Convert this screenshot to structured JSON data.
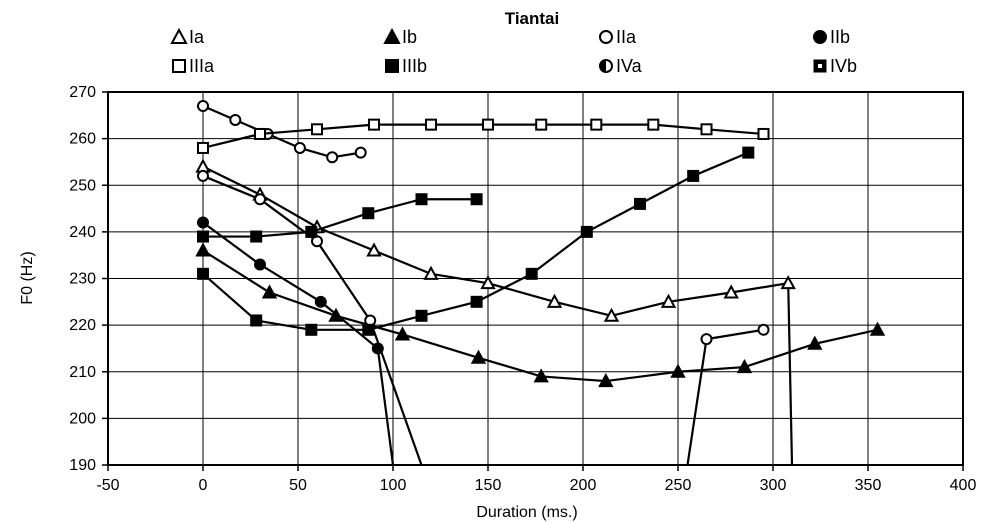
{
  "chart_data": {
    "type": "line",
    "title": "Tiantai",
    "xlabel": "Duration (ms.)",
    "ylabel": "F0 (Hz)",
    "xlim": [
      -50,
      400
    ],
    "ylim": [
      190,
      270
    ],
    "x_ticks": [
      "-50",
      "0",
      "50",
      "100",
      "150",
      "200",
      "250",
      "300",
      "350",
      "400"
    ],
    "y_ticks": [
      "190",
      "200",
      "210",
      "220",
      "230",
      "240",
      "250",
      "260",
      "270"
    ],
    "grid": true,
    "legend_position": "top",
    "series": [
      {
        "name": "Ia",
        "marker": "triangle-open",
        "points": [
          [
            0,
            254
          ],
          [
            30,
            248
          ],
          [
            60,
            241
          ],
          [
            90,
            236
          ],
          [
            120,
            231
          ],
          [
            150,
            229
          ],
          [
            185,
            225
          ],
          [
            215,
            222
          ],
          [
            245,
            225
          ],
          [
            278,
            227
          ],
          [
            308,
            229
          ],
          [
            310,
            190
          ]
        ]
      },
      {
        "name": "Ib",
        "marker": "triangle-filled",
        "points": [
          [
            0,
            236
          ],
          [
            35,
            227
          ],
          [
            70,
            222
          ],
          [
            105,
            218
          ],
          [
            145,
            213
          ],
          [
            178,
            209
          ],
          [
            212,
            208
          ],
          [
            250,
            210
          ],
          [
            285,
            211
          ],
          [
            322,
            216
          ],
          [
            355,
            219
          ]
        ]
      },
      {
        "name": "IIa",
        "marker": "circle-open",
        "points": [
          [
            0,
            252
          ],
          [
            30,
            247
          ],
          [
            60,
            238
          ],
          [
            88,
            221
          ],
          [
            115,
            190
          ]
        ],
        "segments": [
          [
            [
              0,
              267
            ],
            [
              17,
              264
            ],
            [
              34,
              261
            ],
            [
              51,
              258
            ],
            [
              68,
              256
            ],
            [
              83,
              257
            ]
          ],
          [
            [
              255,
              190
            ],
            [
              265,
              217
            ],
            [
              295,
              219
            ]
          ]
        ]
      },
      {
        "name": "IIb",
        "marker": "circle-filled",
        "points": [
          [
            0,
            242
          ],
          [
            30,
            233
          ],
          [
            62,
            225
          ],
          [
            92,
            215
          ],
          [
            100,
            190
          ]
        ]
      },
      {
        "name": "IIIa",
        "marker": "square-open",
        "points": [
          [
            0,
            258
          ],
          [
            30,
            261
          ],
          [
            60,
            262
          ],
          [
            90,
            263
          ],
          [
            120,
            263
          ],
          [
            150,
            263
          ],
          [
            178,
            263
          ],
          [
            207,
            263
          ],
          [
            237,
            263
          ],
          [
            265,
            262
          ],
          [
            295,
            261
          ]
        ]
      },
      {
        "name": "IIIb",
        "marker": "square-filled",
        "points": [
          [
            0,
            231
          ],
          [
            28,
            221
          ],
          [
            57,
            219
          ],
          [
            87,
            219
          ],
          [
            115,
            222
          ],
          [
            144,
            225
          ],
          [
            173,
            231
          ],
          [
            202,
            240
          ],
          [
            230,
            246
          ],
          [
            258,
            252
          ],
          [
            287,
            257
          ]
        ],
        "segments": [
          [
            [
              0,
              239
            ],
            [
              28,
              239
            ],
            [
              57,
              240
            ],
            [
              87,
              244
            ],
            [
              115,
              247
            ],
            [
              144,
              247
            ]
          ]
        ]
      },
      {
        "name": "IVa",
        "marker": "circle-half",
        "points": []
      },
      {
        "name": "IVb",
        "marker": "square-dotted",
        "points": []
      }
    ]
  }
}
